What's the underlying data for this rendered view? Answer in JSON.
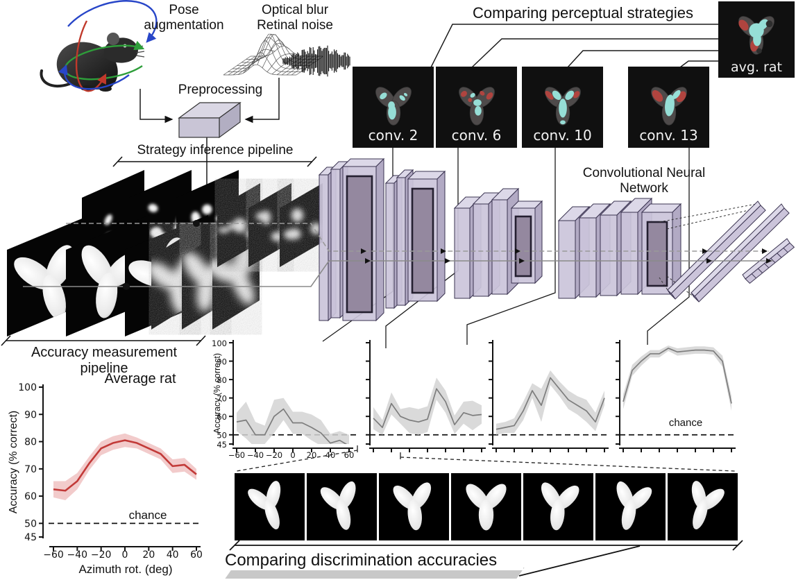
{
  "titles": {
    "comparing_strategies": "Comparing perceptual strategies",
    "comparing_accuracies": "Comparing discrimination accuracies",
    "strategy_pipeline": "Strategy inference pipeline",
    "accuracy_pipeline": "Accuracy measurement pipeline",
    "pose_augmentation": "Pose augmentation",
    "optical_blur": "Optical blur",
    "retinal_noise": "Retinal noise",
    "preprocessing": "Preprocessing",
    "cnn": "Convolutional Neural Network",
    "avg_rat": "avg. rat"
  },
  "conv_boxes": [
    {
      "label": "conv. 2"
    },
    {
      "label": "conv. 6"
    },
    {
      "label": "conv. 10"
    },
    {
      "label": "conv. 13"
    }
  ],
  "stimulus_row": {
    "azimuths": [
      -60,
      -40,
      -20,
      0,
      20,
      40,
      60
    ]
  },
  "colors": {
    "rat_curve": "#c23a38",
    "rat_band": "#f0c2c2",
    "net_curve": "#7d7d7d",
    "net_band": "#d4d4d4",
    "map_cyan": "#96ded6",
    "map_red": "#b0443f",
    "map_gray": "#4e4a4a",
    "slab_face": "#cbc4da",
    "slab_top": "#dcd8e8",
    "slab_side": "#b2aac4",
    "slab_inner": "#94889f",
    "arrow_red": "#c0392b",
    "arrow_blue": "#2846c8",
    "arrow_green": "#2e9e3a"
  },
  "chart_data": [
    {
      "id": "avg_rat",
      "type": "line",
      "title": "Average rat",
      "xlabel": "Azimuth rot. (deg)",
      "ylabel": "Accuracy (% correct)",
      "x": [
        -60,
        -50,
        -40,
        -30,
        -20,
        -10,
        0,
        10,
        20,
        30,
        40,
        50,
        60
      ],
      "values": [
        62.5,
        62,
        65.5,
        72,
        77.5,
        79.5,
        80.5,
        79.5,
        77.5,
        75.5,
        71,
        71.5,
        68
      ],
      "err": [
        3,
        3.5,
        3,
        2.5,
        2.5,
        2.5,
        2.5,
        2,
        2,
        2,
        2.5,
        2.5,
        2
      ],
      "ylim": [
        45,
        100
      ],
      "yticks": [
        45,
        50,
        60,
        70,
        80,
        90,
        100
      ],
      "ytick_labels": [
        "45",
        "50",
        "60",
        "70",
        "80",
        "90",
        "100"
      ],
      "xticks": [
        -60,
        -40,
        -20,
        0,
        20,
        40,
        60
      ],
      "xtick_labels": [
        "−60",
        "−40",
        "−20",
        "0",
        "20",
        "40",
        "60"
      ],
      "show_ytick_labels": true,
      "show_xtick_labels": true,
      "chance": 50,
      "chance_label": "chance",
      "legend": null,
      "grid": false
    },
    {
      "id": "conv2",
      "type": "line",
      "title": "",
      "xlabel": "",
      "ylabel": "Accuracy (% correct)",
      "x": [
        -60,
        -50,
        -40,
        -30,
        -20,
        -10,
        0,
        10,
        20,
        30,
        40,
        50,
        60
      ],
      "values": [
        57,
        58,
        50,
        50,
        60,
        64,
        56.5,
        56.5,
        54,
        51,
        45.5,
        47,
        44
      ],
      "err": [
        5,
        10,
        7,
        5,
        9,
        6,
        6,
        6,
        7,
        7,
        5,
        5,
        6
      ],
      "ylim": [
        45,
        100
      ],
      "yticks": [
        45,
        50,
        60,
        70,
        80,
        90,
        100
      ],
      "ytick_labels": [
        "45",
        "50",
        "60",
        "70",
        "80",
        "90",
        "100"
      ],
      "xticks": [
        -60,
        -40,
        -20,
        0,
        20,
        40,
        60
      ],
      "xtick_labels": [
        "−60",
        "−40",
        "−20",
        "0",
        "20",
        "40",
        "60"
      ],
      "show_ytick_labels": true,
      "show_xtick_labels": true,
      "chance": 50,
      "chance_label": null,
      "legend": null,
      "grid": false
    },
    {
      "id": "conv6",
      "type": "line",
      "title": "",
      "xlabel": "",
      "ylabel": "",
      "x": [
        -60,
        -50,
        -40,
        -30,
        -20,
        -10,
        0,
        10,
        20,
        30,
        40,
        50,
        60
      ],
      "values": [
        59,
        54,
        67,
        60,
        58,
        57,
        58.5,
        75,
        68,
        55.5,
        62,
        60.5,
        61
      ],
      "err": [
        6,
        4,
        6,
        4,
        7,
        7,
        7,
        6,
        6,
        5,
        6,
        8,
        5
      ],
      "ylim": [
        45,
        100
      ],
      "yticks": [
        45,
        50,
        60,
        70,
        80,
        90,
        100
      ],
      "ytick_labels": [],
      "xticks": [
        -60,
        -40,
        -20,
        0,
        20,
        40,
        60
      ],
      "xtick_labels": [],
      "show_ytick_labels": false,
      "show_xtick_labels": false,
      "chance": 50,
      "chance_label": null,
      "legend": null,
      "grid": false
    },
    {
      "id": "conv10",
      "type": "line",
      "title": "",
      "xlabel": "",
      "ylabel": "",
      "x": [
        -60,
        -50,
        -40,
        -30,
        -20,
        -10,
        0,
        10,
        20,
        30,
        40,
        50,
        60
      ],
      "values": [
        53,
        54,
        55,
        63,
        74,
        66,
        81,
        75,
        69,
        66,
        63,
        57,
        70
      ],
      "err": [
        3,
        3,
        4,
        5,
        4,
        9,
        4,
        4,
        5,
        5,
        6,
        5,
        4
      ],
      "ylim": [
        45,
        100
      ],
      "yticks": [
        45,
        50,
        60,
        70,
        80,
        90,
        100
      ],
      "ytick_labels": [],
      "xticks": [
        -60,
        -40,
        -20,
        0,
        20,
        40,
        60
      ],
      "xtick_labels": [],
      "show_ytick_labels": false,
      "show_xtick_labels": false,
      "chance": 50,
      "chance_label": null,
      "legend": null,
      "grid": false
    },
    {
      "id": "conv13",
      "type": "line",
      "title": "",
      "xlabel": "",
      "ylabel": "",
      "x": [
        -60,
        -50,
        -40,
        -30,
        -20,
        -10,
        0,
        10,
        20,
        30,
        40,
        50,
        60
      ],
      "values": [
        68,
        85,
        90,
        94,
        94,
        97,
        95,
        95.5,
        96,
        96,
        95.5,
        90,
        67
      ],
      "err": [
        4,
        3,
        2.5,
        2,
        2,
        1.5,
        2,
        2,
        2,
        2,
        2,
        3,
        4
      ],
      "ylim": [
        45,
        100
      ],
      "yticks": [
        45,
        50,
        60,
        70,
        80,
        90,
        100
      ],
      "ytick_labels": [],
      "xticks": [
        -60,
        -40,
        -20,
        0,
        20,
        40,
        60
      ],
      "xtick_labels": [],
      "show_ytick_labels": false,
      "show_xtick_labels": false,
      "chance": 50,
      "chance_label": "chance",
      "legend": null,
      "grid": false
    }
  ]
}
